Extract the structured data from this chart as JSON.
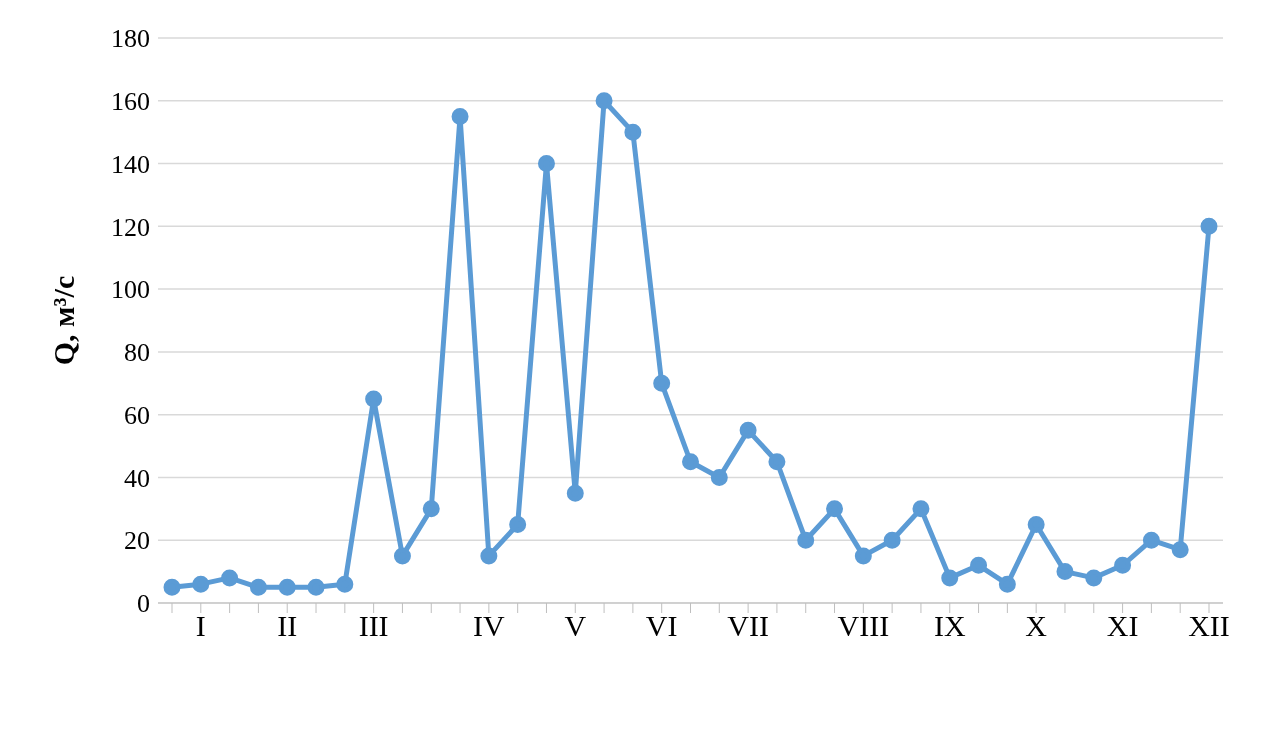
{
  "chart_data": {
    "type": "line",
    "ylabel": "Q, м³/с",
    "categories": [
      null,
      "I",
      null,
      null,
      "II",
      null,
      null,
      "III",
      null,
      null,
      null,
      "IV",
      null,
      null,
      "V",
      null,
      null,
      "VI",
      null,
      null,
      "VII",
      null,
      null,
      null,
      "VIII",
      null,
      null,
      "IX",
      null,
      null,
      "X",
      null,
      null,
      "XI",
      null,
      null,
      "XII"
    ],
    "series": [
      {
        "color": "#5b9bd5",
        "values": [
          5,
          6,
          8,
          5,
          5,
          5,
          6,
          65,
          15,
          30,
          155,
          15,
          25,
          140,
          35,
          160,
          150,
          70,
          45,
          40,
          55,
          45,
          20,
          30,
          15,
          20,
          30,
          8,
          12,
          6,
          25,
          10,
          8,
          12,
          20,
          17,
          120
        ]
      }
    ],
    "ylim": [
      0,
      180
    ],
    "yticks": [
      0,
      20,
      40,
      60,
      80,
      100,
      120,
      140,
      160,
      180
    ],
    "grid": "y",
    "marker": "circle",
    "line_style": "solid",
    "legend": false
  }
}
